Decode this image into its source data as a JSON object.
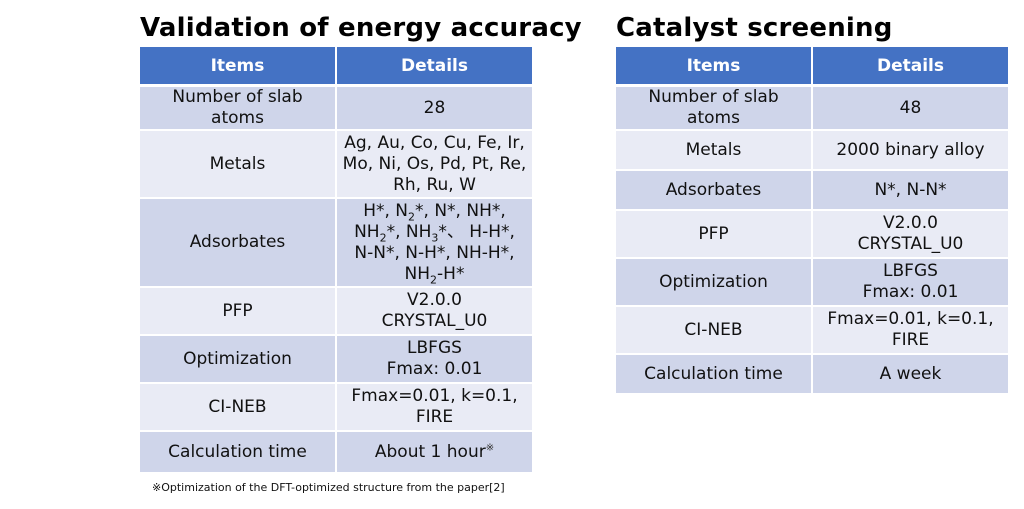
{
  "left": {
    "title": "Validation of energy accuracy",
    "headers": [
      "Items",
      "Details"
    ],
    "rows": {
      "slab_atoms": {
        "item": "Number of slab atoms",
        "detail": "28"
      },
      "metals": {
        "item": "Metals",
        "lines": [
          "Ag, Au, Co, Cu, Fe, Ir,",
          "Mo, Ni, Os, Pd, Pt, Re,",
          "Rh, Ru, W"
        ]
      },
      "adsorbates": {
        "item": "Adsorbates",
        "l1a": "H*, N",
        "l1b": "2",
        "l1c": "*, N*, NH*,",
        "l2a": "NH",
        "l2b": "2",
        "l2c": "*, NH",
        "l2d": "3",
        "l2e": "*、 H-H*,",
        "l3": "N-N*, N-H*, NH-H*,",
        "l4a": "NH",
        "l4b": "2",
        "l4c": "-H*"
      },
      "pfp": {
        "item": "PFP",
        "lines": [
          "V2.0.0",
          "CRYSTAL_U0"
        ]
      },
      "optimization": {
        "item": "Optimization",
        "lines": [
          "LBFGS",
          "Fmax: 0.01"
        ]
      },
      "cineb": {
        "item": "CI-NEB",
        "lines": [
          "Fmax=0.01, k=0.1,",
          "FIRE"
        ]
      },
      "calc_time": {
        "item": "Calculation time",
        "detail": "About 1 hour",
        "mark": "※"
      }
    },
    "footnote": "※Optimization of the DFT-optimized structure from the paper[2]"
  },
  "right": {
    "title": "Catalyst screening",
    "headers": [
      "Items",
      "Details"
    ],
    "rows": {
      "slab_atoms": {
        "item": "Number of slab atoms",
        "detail": "48"
      },
      "metals": {
        "item": "Metals",
        "detail": "2000 binary alloy"
      },
      "adsorbates": {
        "item": "Adsorbates",
        "detail": "N*, N-N*"
      },
      "pfp": {
        "item": "PFP",
        "lines": [
          "V2.0.0",
          "CRYSTAL_U0"
        ]
      },
      "optimization": {
        "item": "Optimization",
        "lines": [
          "LBFGS",
          "Fmax: 0.01"
        ]
      },
      "cineb": {
        "item": "CI-NEB",
        "lines": [
          "Fmax=0.01, k=0.1,",
          "FIRE"
        ]
      },
      "calc_time": {
        "item": "Calculation time",
        "detail": "A week"
      }
    }
  },
  "colors": {
    "header_bg": "#4472c4",
    "row_odd": "#cfd5ea",
    "row_even": "#e9ebf5"
  }
}
